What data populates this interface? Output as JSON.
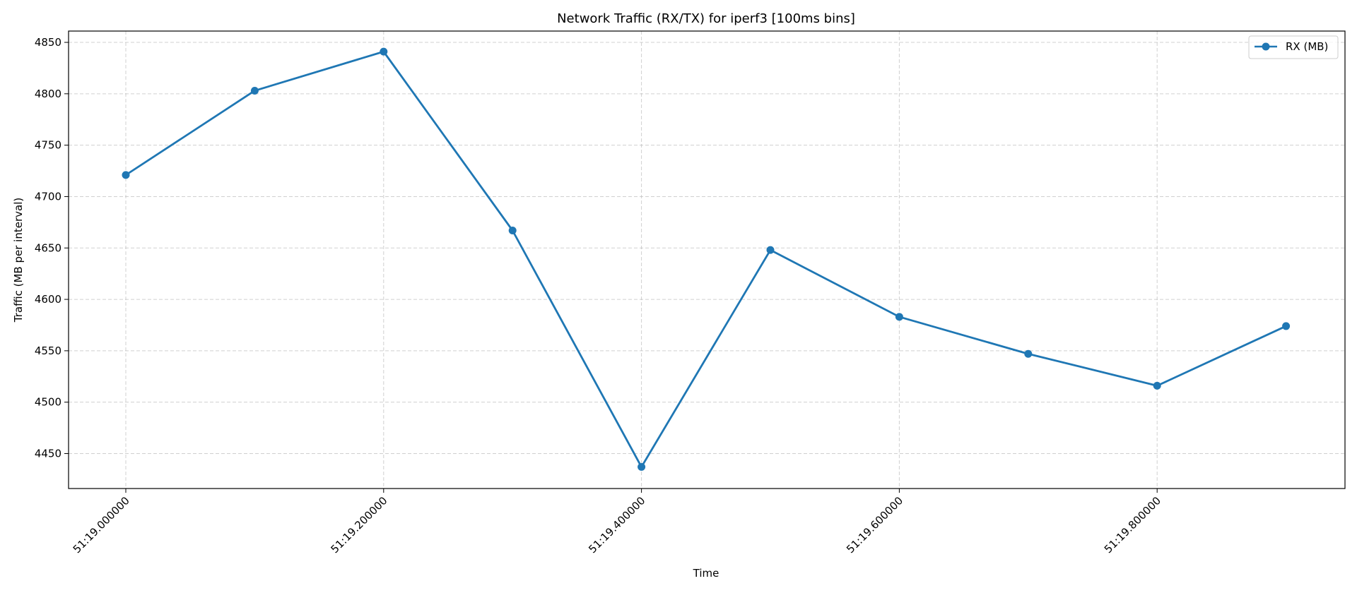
{
  "chart_data": {
    "type": "line",
    "title": "Network Traffic (RX/TX) for iperf3 [100ms bins]",
    "xlabel": "Time",
    "ylabel": "Traffic (MB per interval)",
    "x": [
      "51:19.000000",
      "51:19.100000",
      "51:19.200000",
      "51:19.300000",
      "51:19.400000",
      "51:19.500000",
      "51:19.600000",
      "51:19.700000",
      "51:19.800000",
      "51:19.900000"
    ],
    "x_ticks": [
      "51:19.000000",
      "51:19.200000",
      "51:19.400000",
      "51:19.600000",
      "51:19.800000"
    ],
    "series": [
      {
        "name": "RX (MB)",
        "color": "#1f77b4",
        "values": [
          4721,
          4803,
          4841,
          4667,
          4437,
          4648,
          4583,
          4547,
          4516,
          4574
        ]
      }
    ],
    "ylim": [
      4416,
      4861
    ],
    "y_ticks": [
      4450,
      4500,
      4550,
      4600,
      4650,
      4700,
      4750,
      4800,
      4850
    ],
    "grid": true,
    "legend_position": "top-right"
  }
}
